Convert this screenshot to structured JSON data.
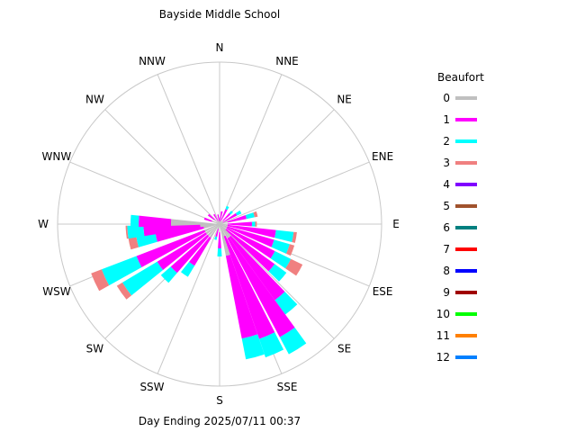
{
  "chart_data": {
    "type": "wind-rose",
    "title": "Bayside Middle School",
    "footer": "Day Ending 2025/07/11 00:37",
    "legend_title": "Beaufort",
    "legend_placement": "right",
    "direction_labels": [
      "N",
      "NNE",
      "NE",
      "ENE",
      "E",
      "ESE",
      "SE",
      "SSE",
      "S",
      "SSW",
      "SW",
      "WSW",
      "W",
      "WNW",
      "NW",
      "NNW"
    ],
    "grid": true,
    "radial_max": 1.0,
    "beaufort_classes": [
      {
        "name": "0",
        "color": "#c0c0c0"
      },
      {
        "name": "1",
        "color": "#ff00ff"
      },
      {
        "name": "2",
        "color": "#00ffff"
      },
      {
        "name": "3",
        "color": "#f08080"
      },
      {
        "name": "4",
        "color": "#8000ff"
      },
      {
        "name": "5",
        "color": "#a0522d"
      },
      {
        "name": "6",
        "color": "#008080"
      },
      {
        "name": "7",
        "color": "#ff0000"
      },
      {
        "name": "8",
        "color": "#0000ff"
      },
      {
        "name": "9",
        "color": "#a00000"
      },
      {
        "name": "10",
        "color": "#00ff00"
      },
      {
        "name": "11",
        "color": "#ff8000"
      },
      {
        "name": "12",
        "color": "#0080ff"
      }
    ],
    "bins": [
      {
        "bearing": 0,
        "values": [
          0.01,
          0.03,
          0.0,
          0.0
        ]
      },
      {
        "bearing": 10,
        "values": [
          0.02,
          0.06,
          0.0,
          0.0
        ]
      },
      {
        "bearing": 25,
        "values": [
          0.02,
          0.08,
          0.02,
          0.0
        ]
      },
      {
        "bearing": 45,
        "values": [
          0.03,
          0.06,
          0.02,
          0.0
        ]
      },
      {
        "bearing": 60,
        "values": [
          0.02,
          0.1,
          0.03,
          0.0
        ]
      },
      {
        "bearing": 75,
        "values": [
          0.05,
          0.12,
          0.05,
          0.02
        ]
      },
      {
        "bearing": 90,
        "values": [
          0.05,
          0.15,
          0.02,
          0.01
        ]
      },
      {
        "bearing": 100,
        "values": [
          0.05,
          0.3,
          0.11,
          0.02
        ]
      },
      {
        "bearing": 110,
        "values": [
          0.05,
          0.3,
          0.1,
          0.03
        ]
      },
      {
        "bearing": 120,
        "values": [
          0.05,
          0.33,
          0.11,
          0.08
        ]
      },
      {
        "bearing": 130,
        "values": [
          0.05,
          0.37,
          0.09,
          0.0
        ]
      },
      {
        "bearing": 140,
        "values": [
          0.1,
          0.48,
          0.11,
          0.0
        ]
      },
      {
        "bearing": 148,
        "values": [
          0.1,
          0.69,
          0.12,
          0.0
        ]
      },
      {
        "bearing": 157,
        "values": [
          0.08,
          0.67,
          0.12,
          0.0
        ]
      },
      {
        "bearing": 165,
        "values": [
          0.2,
          0.52,
          0.13,
          0.0
        ]
      },
      {
        "bearing": 180,
        "values": [
          0.05,
          0.1,
          0.05,
          0.0
        ]
      },
      {
        "bearing": 195,
        "values": [
          0.03,
          0.05,
          0.02,
          0.0
        ]
      },
      {
        "bearing": 215,
        "values": [
          0.1,
          0.2,
          0.08,
          0.0
        ]
      },
      {
        "bearing": 225,
        "values": [
          0.1,
          0.3,
          0.08,
          0.0
        ]
      },
      {
        "bearing": 235,
        "values": [
          0.1,
          0.35,
          0.25,
          0.04
        ]
      },
      {
        "bearing": 245,
        "values": [
          0.1,
          0.45,
          0.23,
          0.07
        ]
      },
      {
        "bearing": 258,
        "values": [
          0.1,
          0.3,
          0.12,
          0.05
        ]
      },
      {
        "bearing": 265,
        "values": [
          0.12,
          0.35,
          0.1,
          0.01
        ]
      },
      {
        "bearing": 272,
        "values": [
          0.3,
          0.2,
          0.05,
          0.0
        ]
      },
      {
        "bearing": 290,
        "values": [
          0.05,
          0.05,
          0.0,
          0.0
        ]
      },
      {
        "bearing": 310,
        "values": [
          0.04,
          0.05,
          0.0,
          0.0
        ]
      },
      {
        "bearing": 330,
        "values": [
          0.02,
          0.05,
          0.0,
          0.0
        ]
      },
      {
        "bearing": 350,
        "values": [
          0.02,
          0.04,
          0.0,
          0.0
        ]
      }
    ]
  }
}
